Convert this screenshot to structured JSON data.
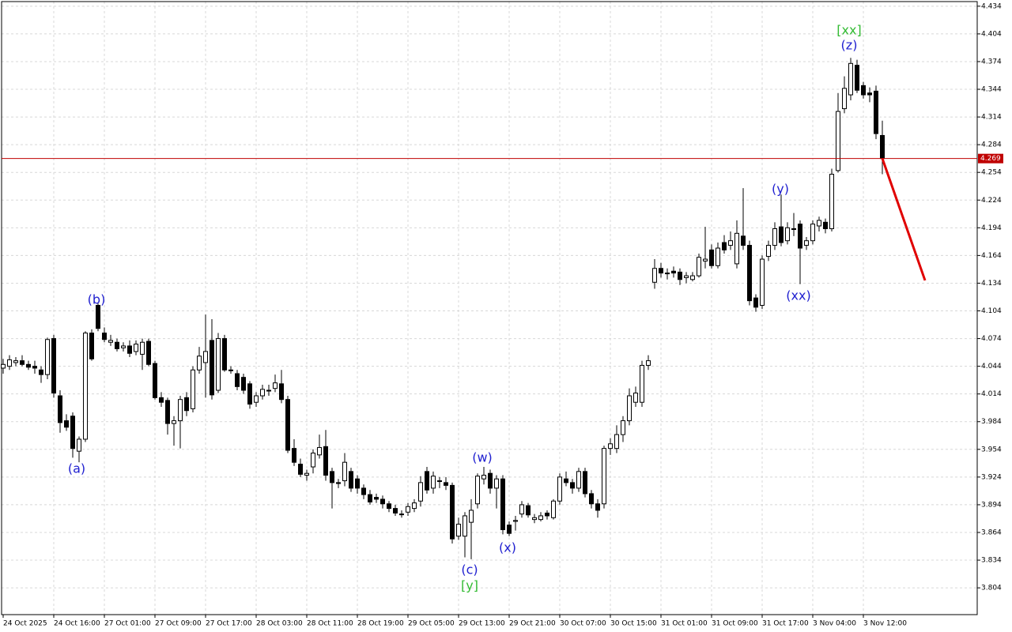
{
  "chart_data": {
    "type": "candlestick",
    "categories": [
      "24 Oct 2025",
      null,
      null,
      null,
      null,
      null,
      null,
      null,
      "24 Oct 16:00",
      null,
      null,
      null,
      null,
      null,
      null,
      null,
      "27 Oct 01:00",
      null,
      null,
      null,
      null,
      null,
      null,
      null,
      "27 Oct 09:00",
      null,
      null,
      null,
      null,
      null,
      null,
      null,
      "27 Oct 17:00",
      null,
      null,
      null,
      null,
      null,
      null,
      null,
      "28 Oct 03:00",
      null,
      null,
      null,
      null,
      null,
      null,
      null,
      "28 Oct 11:00",
      null,
      null,
      null,
      null,
      null,
      null,
      null,
      "28 Oct 19:00",
      null,
      null,
      null,
      null,
      null,
      null,
      null,
      "29 Oct 05:00",
      null,
      null,
      null,
      null,
      null,
      null,
      null,
      "29 Oct 13:00",
      null,
      null,
      null,
      null,
      null,
      null,
      null,
      "29 Oct 21:00",
      null,
      null,
      null,
      null,
      null,
      null,
      null,
      "30 Oct 07:00",
      null,
      null,
      null,
      null,
      null,
      null,
      null,
      "30 Oct 15:00",
      null,
      null,
      null,
      null,
      null,
      null,
      null,
      "31 Oct 01:00",
      null,
      null,
      null,
      null,
      null,
      null,
      null,
      "31 Oct 09:00",
      null,
      null,
      null,
      null,
      null,
      null,
      null,
      "31 Oct 17:00",
      null,
      null,
      null,
      null,
      null,
      null,
      null,
      "3 Nov 04:00",
      null,
      null,
      null,
      null,
      null,
      null,
      null,
      "3 Nov 12:00",
      null,
      null,
      null
    ],
    "open": [
      4.042,
      4.044,
      4.048,
      4.05,
      4.046,
      4.044,
      4.04,
      4.035,
      4.074,
      4.012,
      3.985,
      3.99,
      3.952,
      3.965,
      4.08,
      4.11,
      4.08,
      4.07,
      4.07,
      4.064,
      4.066,
      4.06,
      4.057,
      4.071,
      4.047,
      4.01,
      4.007,
      3.982,
      3.985,
      4.01,
      3.998,
      4.04,
      4.048,
      4.072,
      4.018,
      4.074,
      4.04,
      4.036,
      4.032,
      4.025,
      4.005,
      4.012,
      4.018,
      4.02,
      4.025,
      4.008,
      3.955,
      3.938,
      3.926,
      3.935,
      3.948,
      3.957,
      3.93,
      3.918,
      3.92,
      3.93,
      3.922,
      3.912,
      3.905,
      3.902,
      3.9,
      3.895,
      3.89,
      3.884,
      3.886,
      3.89,
      3.898,
      3.93,
      3.912,
      3.92,
      3.918,
      3.915,
      3.86,
      3.86,
      3.875,
      3.895,
      3.922,
      3.928,
      3.912,
      3.922,
      3.872,
      3.876,
      3.884,
      3.893,
      3.878,
      3.878,
      3.885,
      3.88,
      3.898,
      3.922,
      3.918,
      3.912,
      3.93,
      3.906,
      3.895,
      3.895,
      3.955,
      3.955,
      3.97,
      3.985,
      4.005,
      4.005,
      4.045,
      4.135,
      4.15,
      4.145,
      4.147,
      4.146,
      4.14,
      4.138,
      4.142,
      4.158,
      4.17,
      4.153,
      4.178,
      4.175,
      4.155,
      4.185,
      4.175,
      4.118,
      4.11,
      4.163,
      4.175,
      4.195,
      4.18,
      4.193,
      4.198,
      4.175,
      4.18,
      4.196,
      4.2,
      4.193,
      4.256,
      4.323,
      4.338,
      4.37,
      4.348,
      4.34,
      4.342,
      4.294
    ],
    "high": [
      4.052,
      4.056,
      4.054,
      4.056,
      4.05,
      4.05,
      4.044,
      4.075,
      4.078,
      4.018,
      3.992,
      3.994,
      3.968,
      4.082,
      4.084,
      4.112,
      4.086,
      4.078,
      4.074,
      4.07,
      4.072,
      4.072,
      4.074,
      4.074,
      4.05,
      4.016,
      4.01,
      3.99,
      4.012,
      4.016,
      4.044,
      4.065,
      4.1,
      4.095,
      4.08,
      4.078,
      4.044,
      4.04,
      4.036,
      4.028,
      4.016,
      4.024,
      4.024,
      4.035,
      4.04,
      4.012,
      3.965,
      3.944,
      3.932,
      3.954,
      3.97,
      3.975,
      3.934,
      3.922,
      3.95,
      3.934,
      3.926,
      3.916,
      3.91,
      3.906,
      3.904,
      3.898,
      3.894,
      3.888,
      3.896,
      3.9,
      3.925,
      3.935,
      3.93,
      3.924,
      3.924,
      3.918,
      3.88,
      3.886,
      3.9,
      3.928,
      3.935,
      3.932,
      3.926,
      3.926,
      3.876,
      3.882,
      3.898,
      3.896,
      3.884,
      3.886,
      3.888,
      3.9,
      3.928,
      3.93,
      3.922,
      3.934,
      3.934,
      3.91,
      3.9,
      3.958,
      3.966,
      3.98,
      3.99,
      4.02,
      4.022,
      4.05,
      4.056,
      4.16,
      4.156,
      4.15,
      4.152,
      4.15,
      4.146,
      4.146,
      4.166,
      4.195,
      4.176,
      4.178,
      4.186,
      4.19,
      4.202,
      4.237,
      4.18,
      4.122,
      4.164,
      4.18,
      4.2,
      4.23,
      4.2,
      4.21,
      4.202,
      4.184,
      4.202,
      4.206,
      4.204,
      4.258,
      4.34,
      4.358,
      4.378,
      4.376,
      4.352,
      4.346,
      4.348,
      4.31
    ],
    "low": [
      4.036,
      4.04,
      4.044,
      4.044,
      4.04,
      4.036,
      4.026,
      4.03,
      4.01,
      3.972,
      3.974,
      3.945,
      3.94,
      3.962,
      4.05,
      4.082,
      4.07,
      4.066,
      4.06,
      4.06,
      4.054,
      4.056,
      4.04,
      4.044,
      4.008,
      4.0,
      3.97,
      3.958,
      3.955,
      3.99,
      3.994,
      4.036,
      4.01,
      4.008,
      4.015,
      4.038,
      4.036,
      4.018,
      4.014,
      3.998,
      4.0,
      4.008,
      4.012,
      4.016,
      4.004,
      3.95,
      3.936,
      3.924,
      3.92,
      3.928,
      3.944,
      3.92,
      3.89,
      3.912,
      3.914,
      3.908,
      3.906,
      3.9,
      3.894,
      3.896,
      3.89,
      3.886,
      3.882,
      3.88,
      3.882,
      3.886,
      3.892,
      3.906,
      3.906,
      3.912,
      3.91,
      3.852,
      3.856,
      3.837,
      3.835,
      3.89,
      3.916,
      3.906,
      3.89,
      3.862,
      3.86,
      3.866,
      3.88,
      3.88,
      3.874,
      3.876,
      3.878,
      3.878,
      3.894,
      3.914,
      3.906,
      3.908,
      3.902,
      3.89,
      3.88,
      3.89,
      3.948,
      3.95,
      3.962,
      3.98,
      4.0,
      4.0,
      4.04,
      4.128,
      4.14,
      4.138,
      4.14,
      4.132,
      4.134,
      4.136,
      4.14,
      4.15,
      4.15,
      4.15,
      4.166,
      4.17,
      4.15,
      4.17,
      4.11,
      4.103,
      4.106,
      4.158,
      4.17,
      4.174,
      4.176,
      4.185,
      4.133,
      4.17,
      4.176,
      4.19,
      4.188,
      4.19,
      4.254,
      4.318,
      4.332,
      4.34,
      4.334,
      4.33,
      4.29,
      4.252
    ],
    "close": [
      4.046,
      4.051,
      4.05,
      4.046,
      4.043,
      4.042,
      4.035,
      4.073,
      4.015,
      3.983,
      3.978,
      3.955,
      3.965,
      4.08,
      4.052,
      4.085,
      4.073,
      4.072,
      4.063,
      4.066,
      4.058,
      4.068,
      4.07,
      4.046,
      4.01,
      4.005,
      3.982,
      3.985,
      4.008,
      3.996,
      4.04,
      4.055,
      4.06,
      4.013,
      4.074,
      4.04,
      4.04,
      4.022,
      4.018,
      4.003,
      4.012,
      4.019,
      4.018,
      4.026,
      4.008,
      3.953,
      3.94,
      3.927,
      3.928,
      3.95,
      3.956,
      3.926,
      3.918,
      3.917,
      3.94,
      3.912,
      3.912,
      3.905,
      3.897,
      3.9,
      3.895,
      3.89,
      3.885,
      3.884,
      3.892,
      3.896,
      3.918,
      3.91,
      3.925,
      3.92,
      3.915,
      3.857,
      3.873,
      3.882,
      3.888,
      3.925,
      3.926,
      3.912,
      3.922,
      3.867,
      3.863,
      3.877,
      3.894,
      3.883,
      3.88,
      3.882,
      3.882,
      3.898,
      3.924,
      3.918,
      3.912,
      3.93,
      3.906,
      3.895,
      3.888,
      3.955,
      3.96,
      3.97,
      3.985,
      4.012,
      4.015,
      4.045,
      4.05,
      4.15,
      4.145,
      4.145,
      4.145,
      4.138,
      4.142,
      4.142,
      4.162,
      4.16,
      4.153,
      4.172,
      4.17,
      4.18,
      4.188,
      4.175,
      4.115,
      4.108,
      4.16,
      4.175,
      4.193,
      4.178,
      4.194,
      4.193,
      4.172,
      4.18,
      4.198,
      4.202,
      4.193,
      4.252,
      4.32,
      4.345,
      4.372,
      4.343,
      4.338,
      4.338,
      4.296,
      4.269
    ],
    "ylim": [
      3.775,
      4.439
    ],
    "yticks": [
      3.804,
      3.834,
      3.864,
      3.894,
      3.924,
      3.954,
      3.984,
      4.014,
      4.044,
      4.074,
      4.104,
      4.134,
      4.164,
      4.194,
      4.224,
      4.254,
      4.284,
      4.314,
      4.344,
      4.374,
      4.404,
      4.434
    ],
    "grid": true,
    "current_price": 4.269,
    "current_price_color": "#c00000",
    "forecast_end": 4.137,
    "forecast_color": "#e00000",
    "annotations": [
      {
        "text": "(a)",
        "color": "#2020d0"
      },
      {
        "text": "(b)",
        "color": "#2020d0"
      },
      {
        "text": "(c)",
        "color": "#2020d0"
      },
      {
        "text": "[y]",
        "color": "#33bb33"
      },
      {
        "text": "(w)",
        "color": "#2020d0"
      },
      {
        "text": "(x)",
        "color": "#2020d0"
      },
      {
        "text": "(y)",
        "color": "#2020d0"
      },
      {
        "text": "(xx)",
        "color": "#2020d0"
      },
      {
        "text": "(z)",
        "color": "#2020d0"
      },
      {
        "text": "[xx]",
        "color": "#33bb33"
      }
    ]
  }
}
